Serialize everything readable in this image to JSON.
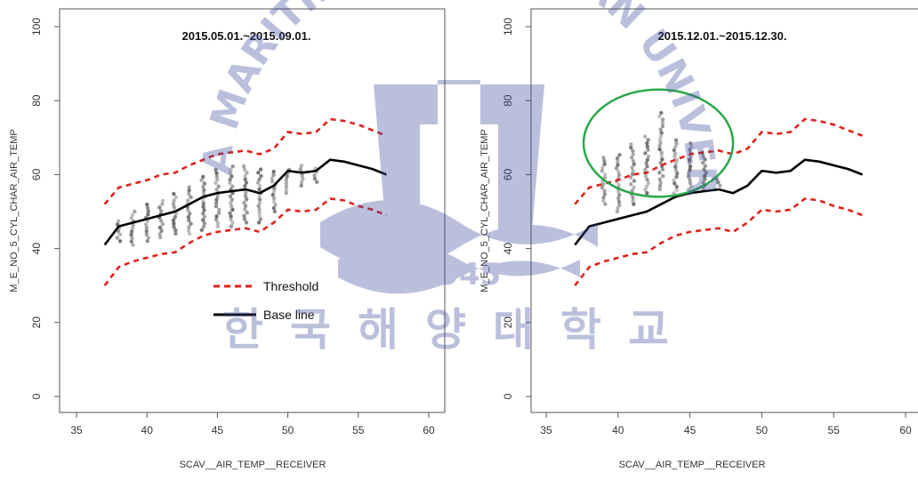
{
  "figure": {
    "watermark": {
      "arc_text": "KOREA MARITIME AND OCEAN UNIVERSITY",
      "center_text": "한국해양대학교",
      "year": "1945",
      "color": "#3d4d9e"
    }
  },
  "chart_data": [
    {
      "type": "scatter",
      "title": "2015.05.01.~2015.09.01.",
      "xlabel": "SCAV__AIR_TEMP__RECEIVER",
      "ylabel": "M_E_NO_5_CYL_CHAR_AIR_TEMP",
      "xlim": [
        34,
        61
      ],
      "ylim": [
        -3,
        103
      ],
      "xticks": [
        35,
        40,
        45,
        50,
        55,
        60
      ],
      "yticks": [
        0,
        20,
        40,
        60,
        80,
        100
      ],
      "legend": {
        "placement": "center",
        "entries": [
          {
            "label": "Threshold",
            "style": "dashed",
            "color": "#e0211c"
          },
          {
            "label": "Base line",
            "style": "solid",
            "color": "#000000"
          }
        ]
      },
      "series": [
        {
          "name": "Base line",
          "x": [
            37,
            38,
            39,
            40,
            41,
            42,
            43,
            44,
            45,
            46,
            47,
            48,
            49,
            50,
            51,
            52,
            53,
            54,
            55,
            56,
            57
          ],
          "y": [
            41,
            46,
            47,
            48,
            49,
            50,
            52,
            54,
            55,
            55.5,
            56,
            55,
            57,
            61,
            60.5,
            61,
            64,
            63.5,
            62.5,
            61.5,
            60
          ]
        },
        {
          "name": "Threshold",
          "x": [
            37,
            38,
            39,
            40,
            41,
            42,
            43,
            44,
            45,
            46,
            47,
            48,
            49,
            50,
            51,
            52,
            53,
            54,
            55,
            56,
            57
          ],
          "y": [
            52,
            56.5,
            57.5,
            58.5,
            60,
            60.5,
            62.5,
            64,
            65.5,
            66,
            66.5,
            65.5,
            67,
            71.5,
            71,
            71.5,
            75,
            74.5,
            73.5,
            72,
            70.5
          ]
        },
        {
          "x": [
            37,
            38,
            39,
            40,
            41,
            42,
            43,
            44,
            45,
            46,
            47,
            48,
            49,
            50,
            51,
            52,
            53,
            54,
            55,
            56,
            57
          ],
          "y": [
            30,
            35,
            36.5,
            37.5,
            38.5,
            39,
            41.5,
            43.5,
            44.5,
            45,
            45.5,
            44.5,
            47,
            50.5,
            50,
            50.5,
            53.5,
            53,
            51.5,
            50.5,
            49
          ]
        }
      ],
      "scatter": {
        "color": "#555555",
        "x": [
          38,
          39,
          40,
          41,
          42,
          43,
          44,
          45,
          46,
          47,
          48,
          49,
          50,
          51,
          52
        ],
        "y_min": [
          42,
          41,
          42,
          43,
          44,
          44,
          45,
          46,
          46,
          47,
          47,
          50,
          55,
          57,
          58
        ],
        "y_max": [
          48,
          50,
          52,
          53,
          55,
          57,
          60,
          62,
          63,
          63,
          62,
          61,
          62,
          63,
          62
        ]
      }
    },
    {
      "type": "scatter",
      "title": "2015.12.01.~2015.12.30.",
      "xlabel": "SCAV__AIR_TEMP__RECEIVER",
      "ylabel": "M_E_NO_5_CYL_CHAR_AIR_TEMP",
      "xlim": [
        34,
        61
      ],
      "ylim": [
        -3,
        103
      ],
      "xticks": [
        35,
        40,
        45,
        50,
        55,
        60
      ],
      "yticks": [
        0,
        20,
        40,
        60,
        80,
        100
      ],
      "highlight": {
        "shape": "ellipse",
        "color": "#2aa84a",
        "cx": 42.8,
        "cy": 68.5,
        "rx": 5.2,
        "ry": 14.5
      },
      "series": [
        {
          "name": "Base line",
          "x": [
            37,
            38,
            39,
            40,
            41,
            42,
            43,
            44,
            45,
            46,
            47,
            48,
            49,
            50,
            51,
            52,
            53,
            54,
            55,
            56,
            57
          ],
          "y": [
            41,
            46,
            47,
            48,
            49,
            50,
            52,
            54,
            55,
            55.5,
            56,
            55,
            57,
            61,
            60.5,
            61,
            64,
            63.5,
            62.5,
            61.5,
            60
          ]
        },
        {
          "name": "Threshold",
          "x": [
            37,
            38,
            39,
            40,
            41,
            42,
            43,
            44,
            45,
            46,
            47,
            48,
            49,
            50,
            51,
            52,
            53,
            54,
            55,
            56,
            57
          ],
          "y": [
            52,
            56.5,
            57.5,
            58.5,
            60,
            60.5,
            62.5,
            64,
            65.5,
            66,
            66.5,
            65.5,
            67,
            71.5,
            71,
            71.5,
            75,
            74.5,
            73.5,
            72,
            70.5
          ]
        },
        {
          "x": [
            37,
            38,
            39,
            40,
            41,
            42,
            43,
            44,
            45,
            46,
            47,
            48,
            49,
            50,
            51,
            52,
            53,
            54,
            55,
            56,
            57
          ],
          "y": [
            30,
            35,
            36.5,
            37.5,
            38.5,
            39,
            41.5,
            43.5,
            44.5,
            45,
            45.5,
            44.5,
            47,
            50.5,
            50,
            50.5,
            53.5,
            53,
            51.5,
            50.5,
            49
          ]
        }
      ],
      "scatter": {
        "color": "#555555",
        "x": [
          39,
          40,
          41,
          42,
          43,
          44,
          45,
          46,
          47
        ],
        "y_min": [
          52,
          50,
          52,
          55,
          56,
          54,
          55,
          56,
          57
        ],
        "y_max": [
          65,
          66,
          69,
          71,
          77,
          70,
          69,
          66,
          59
        ]
      }
    }
  ]
}
